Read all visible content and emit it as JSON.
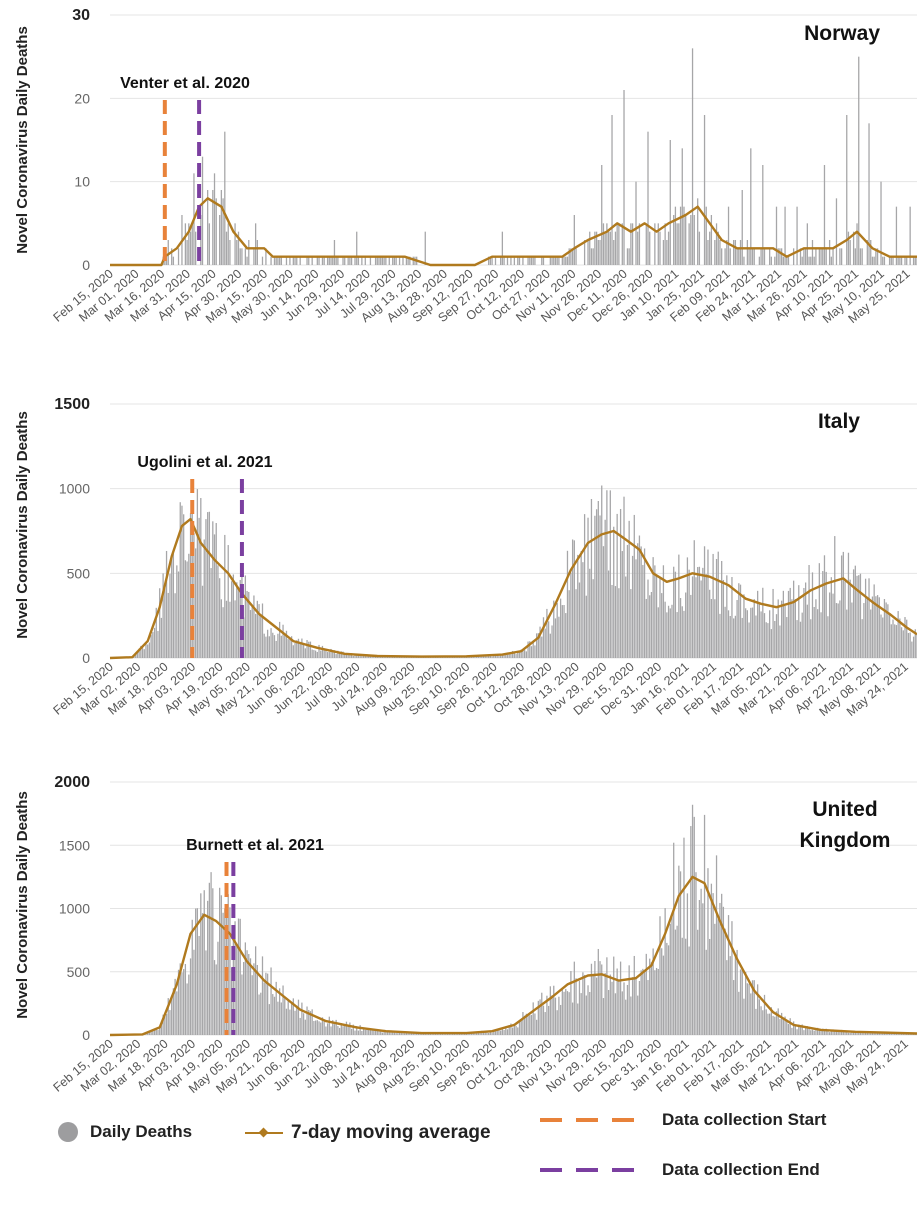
{
  "chart_data": [
    {
      "type": "bar",
      "title": "Norway",
      "ylabel": "Novel Coronavirus Daily Deaths",
      "ylim": [
        0,
        30
      ],
      "yticks": [
        0,
        10,
        20,
        30
      ],
      "annotation": "Venter et al. 2020",
      "start_line": "Mar 18, 2020",
      "end_line": "Apr 07, 2020",
      "x_start": "2020-02-15",
      "x_end": "2021-05-31",
      "xtick_labels": [
        "Feb 15, 2020",
        "Mar 01, 2020",
        "Mar 16, 2020",
        "Mar 31, 2020",
        "Apr 15, 2020",
        "Apr 30, 2020",
        "May 15, 2020",
        "May 30, 2020",
        "Jun 14, 2020",
        "Jun 29, 2020",
        "Jul 14, 2020",
        "Jul 29, 2020",
        "Aug 13, 2020",
        "Aug 28, 2020",
        "Sep 12, 2020",
        "Sep 27, 2020",
        "Oct 12, 2020",
        "Oct 27, 2020",
        "Nov 11, 2020",
        "Nov 26, 2020",
        "Dec 11, 2020",
        "Dec 26, 2020",
        "Jan 10, 2021",
        "Jan 25, 2021",
        "Feb 09, 2021",
        "Feb 24, 2021",
        "Mar 11, 2021",
        "Mar 26, 2021",
        "Apr 10, 2021",
        "Apr 25, 2021",
        "May 10, 2021",
        "May 25, 2021"
      ],
      "moving_average": [
        [
          "2020-02-15",
          0
        ],
        [
          "2020-03-16",
          0
        ],
        [
          "2020-03-18",
          1
        ],
        [
          "2020-03-25",
          2
        ],
        [
          "2020-04-01",
          4
        ],
        [
          "2020-04-07",
          7
        ],
        [
          "2020-04-12",
          8
        ],
        [
          "2020-04-20",
          7
        ],
        [
          "2020-04-27",
          4
        ],
        [
          "2020-05-05",
          2
        ],
        [
          "2020-05-15",
          2
        ],
        [
          "2020-05-20",
          1
        ],
        [
          "2020-06-01",
          1
        ],
        [
          "2020-06-15",
          1
        ],
        [
          "2020-07-01",
          1
        ],
        [
          "2020-07-15",
          1
        ],
        [
          "2020-07-25",
          1
        ],
        [
          "2020-08-05",
          1
        ],
        [
          "2020-08-20",
          0
        ],
        [
          "2020-09-15",
          0
        ],
        [
          "2020-09-25",
          1
        ],
        [
          "2020-10-10",
          1
        ],
        [
          "2020-10-27",
          1
        ],
        [
          "2020-11-05",
          1
        ],
        [
          "2020-11-12",
          2
        ],
        [
          "2020-11-20",
          3
        ],
        [
          "2020-12-01",
          4
        ],
        [
          "2020-12-07",
          5
        ],
        [
          "2020-12-15",
          4
        ],
        [
          "2020-12-23",
          5
        ],
        [
          "2020-12-30",
          4
        ],
        [
          "2021-01-06",
          5
        ],
        [
          "2021-01-16",
          6
        ],
        [
          "2021-01-23",
          7
        ],
        [
          "2021-01-30",
          5
        ],
        [
          "2021-02-06",
          3
        ],
        [
          "2021-02-15",
          2
        ],
        [
          "2021-02-28",
          2
        ],
        [
          "2021-03-08",
          2
        ],
        [
          "2021-03-16",
          1
        ],
        [
          "2021-03-26",
          2
        ],
        [
          "2021-04-03",
          2
        ],
        [
          "2021-04-12",
          2
        ],
        [
          "2021-04-20",
          3
        ],
        [
          "2021-04-26",
          4
        ],
        [
          "2021-05-05",
          2
        ],
        [
          "2021-05-15",
          1
        ],
        [
          "2021-05-31",
          1
        ]
      ],
      "bar_peaks": [
        [
          "2020-03-10",
          1
        ],
        [
          "2020-03-20",
          3
        ],
        [
          "2020-03-28",
          6
        ],
        [
          "2020-04-04",
          11
        ],
        [
          "2020-04-09",
          13
        ],
        [
          "2020-04-16",
          11
        ],
        [
          "2020-04-22",
          16
        ],
        [
          "2020-05-10",
          5
        ],
        [
          "2020-06-25",
          3
        ],
        [
          "2020-07-08",
          4
        ],
        [
          "2020-08-17",
          4
        ],
        [
          "2020-10-01",
          4
        ],
        [
          "2020-11-12",
          6
        ],
        [
          "2020-11-28",
          12
        ],
        [
          "2020-12-04",
          18
        ],
        [
          "2020-12-11",
          21
        ],
        [
          "2020-12-18",
          10
        ],
        [
          "2020-12-25",
          16
        ],
        [
          "2021-01-07",
          15
        ],
        [
          "2021-01-14",
          14
        ],
        [
          "2021-01-20",
          26
        ],
        [
          "2021-01-27",
          18
        ],
        [
          "2021-02-10",
          7
        ],
        [
          "2021-02-18",
          9
        ],
        [
          "2021-02-23",
          14
        ],
        [
          "2021-03-02",
          12
        ],
        [
          "2021-03-10",
          7
        ],
        [
          "2021-03-15",
          7
        ],
        [
          "2021-03-22",
          7
        ],
        [
          "2021-03-28",
          5
        ],
        [
          "2021-04-07",
          12
        ],
        [
          "2021-04-14",
          8
        ],
        [
          "2021-04-20",
          18
        ],
        [
          "2021-04-27",
          25
        ],
        [
          "2021-05-03",
          17
        ],
        [
          "2021-05-10",
          10
        ],
        [
          "2021-05-19",
          7
        ],
        [
          "2021-05-27",
          7
        ]
      ]
    },
    {
      "type": "bar",
      "title": "Italy",
      "ylabel": "Novel Coronavirus Daily Deaths",
      "ylim": [
        0,
        1500
      ],
      "yticks": [
        0,
        500,
        1000,
        1500
      ],
      "annotation": "Ugolini et al. 2021",
      "start_line": "Apr 03, 2020",
      "end_line": "May 02, 2020",
      "x_start": "2020-02-15",
      "x_end": "2021-05-31",
      "xtick_labels": [
        "Feb 15, 2020",
        "Mar 02, 2020",
        "Mar 18, 2020",
        "Apr 03, 2020",
        "Apr 19, 2020",
        "May 05, 2020",
        "May 21, 2020",
        "Jun 06, 2020",
        "Jun 22, 2020",
        "Jul 08, 2020",
        "Jul 24, 2020",
        "Aug 09, 2020",
        "Aug 25, 2020",
        "Sep 10, 2020",
        "Sep 26, 2020",
        "Oct 12, 2020",
        "Oct 28, 2020",
        "Nov 13, 2020",
        "Nov 29, 2020",
        "Dec 15, 2020",
        "Dec 31, 2020",
        "Jan 16, 2021",
        "Feb 01, 2021",
        "Feb 17, 2021",
        "Mar 05, 2021",
        "Mar 21, 2021",
        "Apr 06, 2021",
        "Apr 22, 2021",
        "May 08, 2021",
        "May 24, 2021"
      ],
      "moving_average": [
        [
          "2020-02-15",
          0
        ],
        [
          "2020-02-28",
          5
        ],
        [
          "2020-03-08",
          100
        ],
        [
          "2020-03-15",
          300
        ],
        [
          "2020-03-22",
          600
        ],
        [
          "2020-03-28",
          780
        ],
        [
          "2020-04-02",
          820
        ],
        [
          "2020-04-08",
          680
        ],
        [
          "2020-04-16",
          580
        ],
        [
          "2020-04-24",
          500
        ],
        [
          "2020-05-02",
          380
        ],
        [
          "2020-05-12",
          260
        ],
        [
          "2020-05-22",
          180
        ],
        [
          "2020-06-01",
          100
        ],
        [
          "2020-06-15",
          60
        ],
        [
          "2020-07-01",
          25
        ],
        [
          "2020-07-20",
          12
        ],
        [
          "2020-08-15",
          8
        ],
        [
          "2020-09-10",
          10
        ],
        [
          "2020-10-01",
          20
        ],
        [
          "2020-10-12",
          40
        ],
        [
          "2020-10-22",
          120
        ],
        [
          "2020-11-01",
          320
        ],
        [
          "2020-11-10",
          520
        ],
        [
          "2020-11-20",
          680
        ],
        [
          "2020-11-28",
          730
        ],
        [
          "2020-12-05",
          750
        ],
        [
          "2020-12-12",
          700
        ],
        [
          "2020-12-20",
          640
        ],
        [
          "2020-12-28",
          500
        ],
        [
          "2021-01-05",
          450
        ],
        [
          "2021-01-12",
          470
        ],
        [
          "2021-01-20",
          500
        ],
        [
          "2021-01-30",
          480
        ],
        [
          "2021-02-10",
          430
        ],
        [
          "2021-02-20",
          350
        ],
        [
          "2021-03-01",
          320
        ],
        [
          "2021-03-10",
          300
        ],
        [
          "2021-03-20",
          330
        ],
        [
          "2021-03-30",
          400
        ],
        [
          "2021-04-08",
          440
        ],
        [
          "2021-04-18",
          470
        ],
        [
          "2021-04-25",
          410
        ],
        [
          "2021-05-05",
          330
        ],
        [
          "2021-05-15",
          260
        ],
        [
          "2021-05-25",
          180
        ],
        [
          "2021-05-31",
          140
        ]
      ],
      "bar_peaks": [
        [
          "2020-03-27",
          920
        ],
        [
          "2020-04-03",
          880
        ],
        [
          "2020-04-10",
          700
        ],
        [
          "2020-11-24",
          840
        ],
        [
          "2020-12-03",
          990
        ],
        [
          "2020-12-09",
          880
        ],
        [
          "2021-04-04",
          560
        ],
        [
          "2021-04-13",
          720
        ]
      ]
    },
    {
      "type": "bar",
      "title": "United Kingdom",
      "ylabel": "Novel Coronavirus Daily Deaths",
      "ylim": [
        0,
        2000
      ],
      "yticks": [
        0,
        500,
        1000,
        1500,
        2000
      ],
      "annotation": "Burnett et al. 2021",
      "start_line": "Apr 23, 2020",
      "end_line": "Apr 27, 2020",
      "x_start": "2020-02-15",
      "x_end": "2021-05-31",
      "xtick_labels": [
        "Feb 15, 2020",
        "Mar 02, 2020",
        "Mar 18, 2020",
        "Apr 03, 2020",
        "Apr 19, 2020",
        "May 05, 2020",
        "May 21, 2020",
        "Jun 06, 2020",
        "Jun 22, 2020",
        "Jul 08, 2020",
        "Jul 24, 2020",
        "Aug 09, 2020",
        "Aug 25, 2020",
        "Sep 10, 2020",
        "Sep 26, 2020",
        "Oct 12, 2020",
        "Oct 28, 2020",
        "Nov 13, 2020",
        "Nov 29, 2020",
        "Dec 15, 2020",
        "Dec 31, 2020",
        "Jan 16, 2021",
        "Feb 01, 2021",
        "Feb 17, 2021",
        "Mar 05, 2021",
        "Mar 21, 2021",
        "Apr 06, 2021",
        "Apr 22, 2021",
        "May 08, 2021",
        "May 24, 2021"
      ],
      "moving_average": [
        [
          "2020-02-15",
          0
        ],
        [
          "2020-03-05",
          5
        ],
        [
          "2020-03-15",
          60
        ],
        [
          "2020-03-25",
          400
        ],
        [
          "2020-04-02",
          800
        ],
        [
          "2020-04-10",
          950
        ],
        [
          "2020-04-17",
          900
        ],
        [
          "2020-04-25",
          800
        ],
        [
          "2020-05-05",
          580
        ],
        [
          "2020-05-15",
          430
        ],
        [
          "2020-05-25",
          320
        ],
        [
          "2020-06-05",
          200
        ],
        [
          "2020-06-20",
          110
        ],
        [
          "2020-07-08",
          60
        ],
        [
          "2020-07-25",
          30
        ],
        [
          "2020-08-15",
          15
        ],
        [
          "2020-09-10",
          15
        ],
        [
          "2020-09-25",
          30
        ],
        [
          "2020-10-08",
          80
        ],
        [
          "2020-10-20",
          200
        ],
        [
          "2020-10-30",
          300
        ],
        [
          "2020-11-08",
          400
        ],
        [
          "2020-11-20",
          470
        ],
        [
          "2020-11-28",
          480
        ],
        [
          "2020-12-08",
          430
        ],
        [
          "2020-12-18",
          450
        ],
        [
          "2020-12-27",
          550
        ],
        [
          "2021-01-04",
          800
        ],
        [
          "2021-01-12",
          1100
        ],
        [
          "2021-01-20",
          1250
        ],
        [
          "2021-01-27",
          1200
        ],
        [
          "2021-02-05",
          900
        ],
        [
          "2021-02-15",
          600
        ],
        [
          "2021-02-25",
          350
        ],
        [
          "2021-03-08",
          180
        ],
        [
          "2021-03-20",
          80
        ],
        [
          "2021-04-05",
          40
        ],
        [
          "2021-04-25",
          25
        ],
        [
          "2021-05-31",
          12
        ]
      ],
      "bar_peaks": [
        [
          "2020-04-08",
          1120
        ],
        [
          "2020-04-15",
          1160
        ],
        [
          "2020-04-22",
          1000
        ],
        [
          "2020-05-06",
          640
        ],
        [
          "2020-05-22",
          420
        ],
        [
          "2020-11-12",
          580
        ],
        [
          "2020-11-26",
          680
        ],
        [
          "2020-12-05",
          620
        ],
        [
          "2021-01-09",
          1520
        ],
        [
          "2021-01-15",
          1560
        ],
        [
          "2021-01-20",
          1820
        ],
        [
          "2021-01-27",
          1740
        ],
        [
          "2021-02-03",
          1420
        ],
        [
          "2021-02-12",
          900
        ]
      ]
    }
  ],
  "legend": {
    "daily_deaths": "Daily Deaths",
    "moving_average": "7-day moving average",
    "start": "Data collection Start",
    "end": "Data collection End"
  },
  "colors": {
    "bars": "#a6a6a8",
    "moving_average": "#b07a1e",
    "start_line": "#e8823a",
    "end_line": "#7b3fa0",
    "grid": "#e4e4e4"
  }
}
